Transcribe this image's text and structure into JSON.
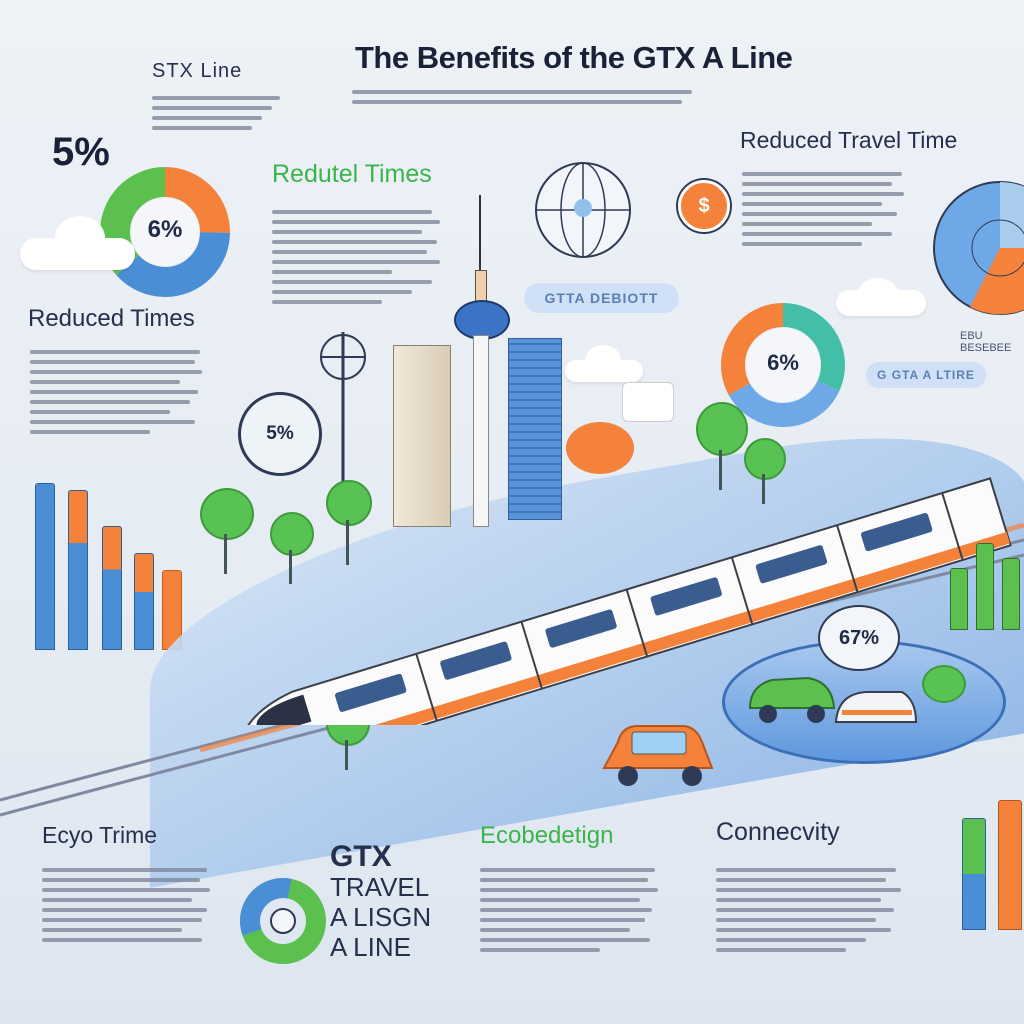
{
  "title": "The Benefits of the GTX A Line",
  "subtitle_left": "STX Line",
  "headings": {
    "reduced_times_left": "Reduced Times",
    "reduced_times_green": "Redutel Times",
    "reduced_travel_time": "Reduced Travel Time",
    "eco_times": "Ecyo Trime",
    "eco_design": "Ecobedetign",
    "connectivity": "Connecvity"
  },
  "pills": {
    "gtta": "GTTA DEBIOTT",
    "gtx_a_line": "G GTA A LTIRE",
    "eco_pill": "EBU BESEBEE"
  },
  "stats": {
    "top_left_big": "5%",
    "donut_left": "6%",
    "badge_left": "5%",
    "donut_mid": "6%",
    "badge_right": "67%"
  },
  "center_label": {
    "line1": "GTX",
    "line2": "TRAVEL",
    "line3": "A LISGN",
    "line4": "A LINE"
  },
  "colors": {
    "orange": "#f5823b",
    "green": "#5cc04e",
    "blue": "#4a8fd6",
    "navy": "#26304d",
    "teal": "#43bfa8"
  },
  "icons": [
    "globe-icon",
    "map-pin-icon",
    "cloud-icon",
    "tree-icon",
    "train-icon",
    "car-icon",
    "tower-icon"
  ]
}
